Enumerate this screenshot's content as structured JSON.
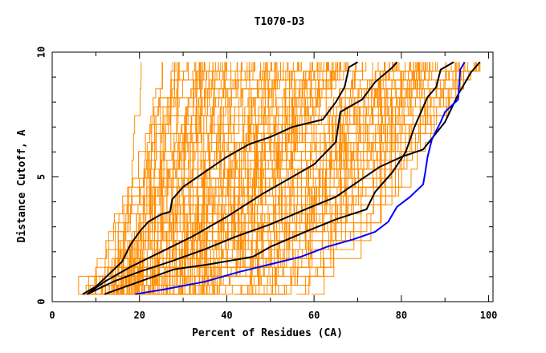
{
  "chart_data": {
    "type": "line",
    "title": "T1070-D3",
    "xlabel": "Percent of Residues (CA)",
    "ylabel": "Distance Cutoff, A",
    "xlim": [
      0,
      101
    ],
    "ylim": [
      0,
      10
    ],
    "x_ticks": [
      0,
      20,
      40,
      60,
      80,
      100
    ],
    "x_tick_labels": [
      "0",
      "20",
      "40",
      "60",
      "80",
      "100"
    ],
    "y_ticks": [
      0,
      5,
      10
    ],
    "y_tick_labels": [
      "0",
      "5",
      "10"
    ],
    "grid": false,
    "legend": "none",
    "colors": {
      "background_curves": "#ff8c00",
      "highlight_black": "#000000",
      "highlight_blue": "#0000ff",
      "frame": "#000000"
    },
    "background_series_count": 160,
    "highlighted_series": [
      {
        "color": "#000000",
        "points": [
          [
            7,
            0.3
          ],
          [
            10,
            0.6
          ],
          [
            13,
            1.1
          ],
          [
            16,
            1.6
          ],
          [
            18,
            2.3
          ],
          [
            20,
            2.8
          ],
          [
            22,
            3.2
          ],
          [
            25,
            3.5
          ],
          [
            27,
            3.6
          ],
          [
            27.5,
            4.1
          ],
          [
            30,
            4.6
          ],
          [
            35,
            5.2
          ],
          [
            40,
            5.8
          ],
          [
            45,
            6.3
          ],
          [
            50,
            6.6
          ],
          [
            55,
            7.0
          ],
          [
            62,
            7.3
          ],
          [
            65,
            8.0
          ],
          [
            67,
            8.6
          ],
          [
            68,
            9.4
          ],
          [
            70,
            9.6
          ]
        ]
      },
      {
        "color": "#000000",
        "points": [
          [
            8,
            0.3
          ],
          [
            12,
            0.8
          ],
          [
            18,
            1.4
          ],
          [
            25,
            2.0
          ],
          [
            32,
            2.6
          ],
          [
            40,
            3.4
          ],
          [
            48,
            4.3
          ],
          [
            55,
            5.0
          ],
          [
            60,
            5.5
          ],
          [
            65,
            6.4
          ],
          [
            66,
            7.6
          ],
          [
            68,
            7.8
          ],
          [
            71,
            8.1
          ],
          [
            74,
            8.8
          ],
          [
            78,
            9.4
          ],
          [
            79,
            9.6
          ]
        ]
      },
      {
        "color": "#000000",
        "points": [
          [
            8,
            0.3
          ],
          [
            14,
            0.8
          ],
          [
            20,
            1.2
          ],
          [
            27,
            1.6
          ],
          [
            35,
            2.1
          ],
          [
            42,
            2.6
          ],
          [
            50,
            3.1
          ],
          [
            58,
            3.7
          ],
          [
            65,
            4.2
          ],
          [
            70,
            4.8
          ],
          [
            75,
            5.4
          ],
          [
            80,
            5.8
          ],
          [
            85,
            6.1
          ],
          [
            90,
            7.2
          ],
          [
            93,
            8.3
          ],
          [
            96,
            9.2
          ],
          [
            98,
            9.6
          ]
        ]
      },
      {
        "color": "#000000",
        "points": [
          [
            12,
            0.3
          ],
          [
            20,
            0.8
          ],
          [
            28,
            1.3
          ],
          [
            36,
            1.5
          ],
          [
            46,
            1.8
          ],
          [
            50,
            2.2
          ],
          [
            58,
            2.8
          ],
          [
            65,
            3.3
          ],
          [
            72,
            3.7
          ],
          [
            74,
            4.4
          ],
          [
            78,
            5.2
          ],
          [
            81,
            6.0
          ],
          [
            83,
            7.0
          ],
          [
            86,
            8.2
          ],
          [
            88,
            8.6
          ],
          [
            89,
            9.3
          ],
          [
            92,
            9.6
          ]
        ]
      },
      {
        "color": "#0000ff",
        "points": [
          [
            19,
            0.3
          ],
          [
            26,
            0.5
          ],
          [
            35,
            0.8
          ],
          [
            43,
            1.2
          ],
          [
            50,
            1.5
          ],
          [
            57,
            1.8
          ],
          [
            63,
            2.2
          ],
          [
            69,
            2.5
          ],
          [
            74,
            2.8
          ],
          [
            77,
            3.2
          ],
          [
            79,
            3.8
          ],
          [
            82,
            4.2
          ],
          [
            85,
            4.7
          ],
          [
            85.5,
            5.2
          ],
          [
            86,
            5.8
          ],
          [
            87,
            6.5
          ],
          [
            89,
            7.2
          ],
          [
            90,
            7.6
          ],
          [
            93,
            8.1
          ],
          [
            93.5,
            9.3
          ],
          [
            94.5,
            9.6
          ]
        ]
      }
    ]
  }
}
